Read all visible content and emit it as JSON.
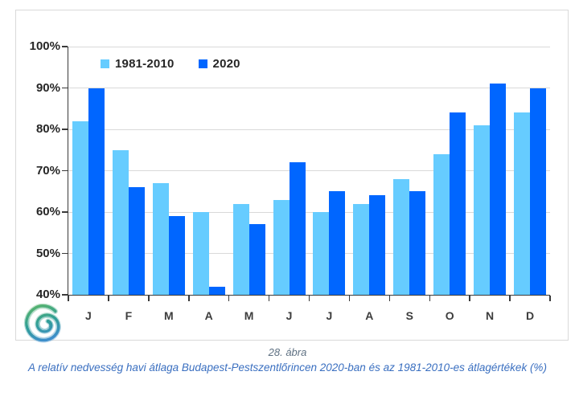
{
  "chart_data": {
    "type": "bar",
    "categories": [
      "J",
      "F",
      "M",
      "A",
      "M",
      "J",
      "J",
      "A",
      "S",
      "O",
      "N",
      "D"
    ],
    "series": [
      {
        "name": "1981-2010",
        "color": "#66CCFF",
        "values": [
          82,
          75,
          67,
          60,
          62,
          63,
          60,
          62,
          68,
          74,
          81,
          84
        ]
      },
      {
        "name": "2020",
        "color": "#0066FF",
        "values": [
          90,
          66,
          59,
          42,
          57,
          72,
          65,
          64,
          65,
          84,
          91,
          90
        ]
      }
    ],
    "ylim": [
      40,
      100
    ],
    "ytick_step": 10,
    "ytick_suffix": "%",
    "grid": true,
    "legend_position": "top-left-inside",
    "xlabel": "",
    "ylabel": ""
  },
  "caption": {
    "figure_label": "28. ábra",
    "title": "A relatív nedvesség havi átlaga Budapest-Pestszentlőrincen 2020-ban és az 1981-2010-es átlagértékek (%)"
  },
  "colors": {
    "series_light": "#66CCFF",
    "series_dark": "#0066FF",
    "gridline": "#d9d9d9",
    "axis": "#3a3a3a",
    "frame_border": "#d9d9d9",
    "tick_label": "#262626",
    "caption_figure": "#5e7082",
    "caption_title": "#3a6fc0",
    "logo_green": "#55b271",
    "logo_teal": "#2f9e96",
    "logo_blue": "#3e8ecb"
  }
}
